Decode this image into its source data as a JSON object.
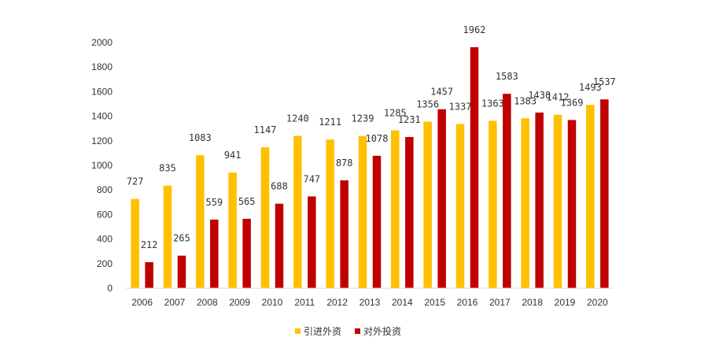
{
  "chart_data": {
    "type": "bar",
    "title": "",
    "xlabel": "",
    "ylabel": "",
    "ylim": [
      0,
      2000
    ],
    "yticks": [
      0,
      200,
      400,
      600,
      800,
      1000,
      1200,
      1400,
      1600,
      1800,
      2000
    ],
    "grid": false,
    "legend_position": "bottom",
    "categories": [
      "2006",
      "2007",
      "2008",
      "2009",
      "2010",
      "2011",
      "2012",
      "2013",
      "2014",
      "2015",
      "2016",
      "2017",
      "2018",
      "2019",
      "2020"
    ],
    "series": [
      {
        "name": "引进外资",
        "color": "#FFC000",
        "values": [
          727,
          835,
          1083,
          941,
          1147,
          1240,
          1211,
          1239,
          1285,
          1356,
          1337,
          1363,
          1383,
          1412,
          1493
        ],
        "labels": [
          "727",
          "835",
          "1083",
          "941",
          "1147",
          "1240",
          "1211",
          "1239",
          "1285",
          "1356",
          "1337",
          "1363",
          "1383",
          "1412",
          "1493"
        ]
      },
      {
        "name": "对外投资",
        "color": "#C00000",
        "values": [
          212,
          265,
          559,
          565,
          688,
          747,
          878,
          1078,
          1231,
          1457,
          1962,
          1583,
          1430,
          1369,
          1537
        ],
        "labels": [
          "212",
          "265",
          "559",
          "565",
          "688",
          "747",
          "878",
          "1078",
          "1231",
          "1457",
          "1962",
          "1583",
          "1430",
          "1369",
          "1537"
        ]
      }
    ]
  }
}
